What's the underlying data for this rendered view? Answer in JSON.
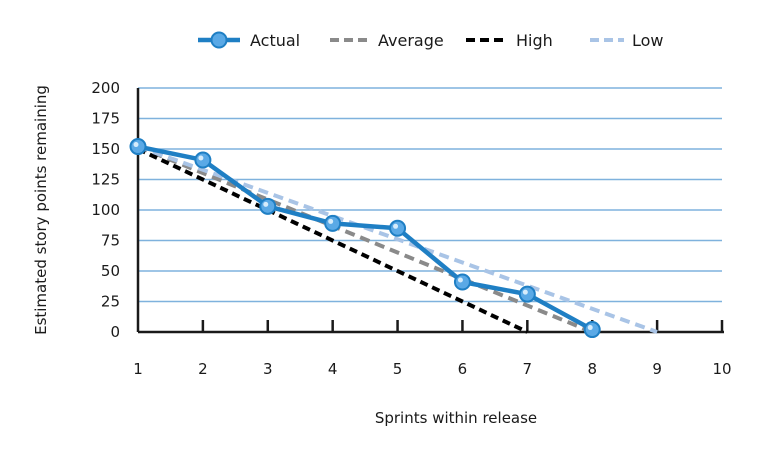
{
  "chart_data": {
    "type": "line",
    "title": "",
    "xlabel": "Sprints within release",
    "ylabel": "Estimated story points remaining",
    "x": [
      1,
      2,
      3,
      4,
      5,
      6,
      7,
      8,
      9,
      10
    ],
    "x_tick_labels": [
      "1",
      "2",
      "3",
      "4",
      "5",
      "6",
      "7",
      "8",
      "9",
      "10"
    ],
    "xlim": [
      1,
      10
    ],
    "ylim": [
      0,
      200
    ],
    "y_ticks": [
      0,
      25,
      50,
      75,
      100,
      125,
      150,
      175,
      200
    ],
    "y_tick_labels": [
      "0",
      "25",
      "50",
      "75",
      "100",
      "125",
      "150",
      "175",
      "200"
    ],
    "grid": "horizontal",
    "legend_position": "top",
    "series": [
      {
        "name": "Actual",
        "style": "solid-with-markers",
        "color": "#1f7fc4",
        "x": [
          1,
          2,
          3,
          4,
          5,
          6,
          7,
          8
        ],
        "y": [
          152,
          141,
          103,
          89,
          85,
          41,
          31,
          2
        ]
      },
      {
        "name": "Average",
        "style": "dashed",
        "color": "#8a8a8a",
        "x": [
          1,
          8
        ],
        "y": [
          152,
          0
        ]
      },
      {
        "name": "High",
        "style": "dashed",
        "color": "#000000",
        "x": [
          1,
          7
        ],
        "y": [
          150,
          0
        ]
      },
      {
        "name": "Low",
        "style": "dashed",
        "color": "#a9c4e6",
        "x": [
          1,
          9
        ],
        "y": [
          152,
          0
        ]
      }
    ],
    "colors": {
      "gridline": "#7fb2dd",
      "axis": "#1a1a1a"
    }
  }
}
